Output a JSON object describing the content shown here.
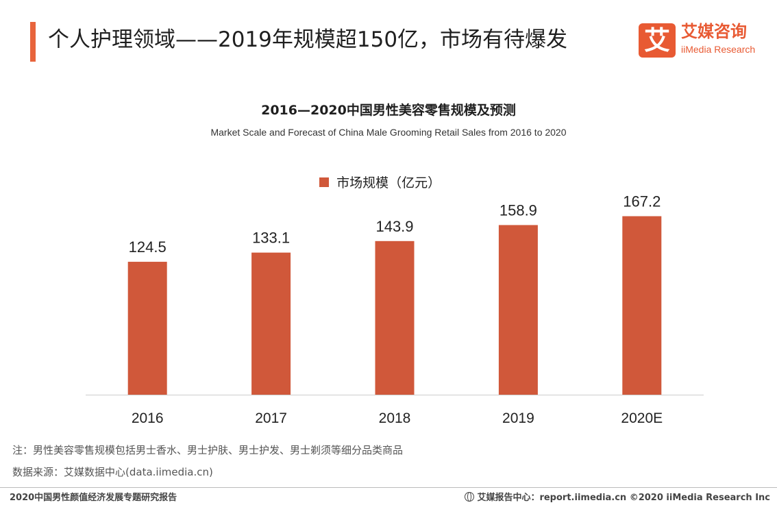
{
  "header": {
    "title": "个人护理领域——2019年规模超150亿，市场有待爆发",
    "logo_mark": "艾",
    "logo_cn": "艾媒咨询",
    "logo_en": "iiMedia Research"
  },
  "chart_data": {
    "type": "bar",
    "title": "2016—2020中国男性美容零售规模及预测",
    "subtitle": "Market Scale and Forecast of China Male Grooming Retail Sales from 2016 to 2020",
    "categories": [
      "2016",
      "2017",
      "2018",
      "2019",
      "2020E"
    ],
    "series": [
      {
        "name": "市场规模（亿元）",
        "values": [
          124.5,
          133.1,
          143.9,
          158.9,
          167.2
        ],
        "color": "#d0583a"
      }
    ],
    "value_labels": [
      "124.5",
      "133.1",
      "143.9",
      "158.9",
      "167.2"
    ],
    "ylim": [
      0,
      190
    ],
    "grid": false,
    "legend_position": "top-center",
    "xlabel": "",
    "ylabel": ""
  },
  "notes": {
    "note": "注：男性美容零售规模包括男士香水、男士护肤、男士护发、男士剃须等细分品类商品",
    "source": "数据来源：艾媒数据中心(data.iimedia.cn)"
  },
  "footer": {
    "left": "2020中国男性颜值经济发展专题研究报告",
    "right": "艾媒报告中心：report.iimedia.cn ©2020 iiMedia Research Inc"
  }
}
